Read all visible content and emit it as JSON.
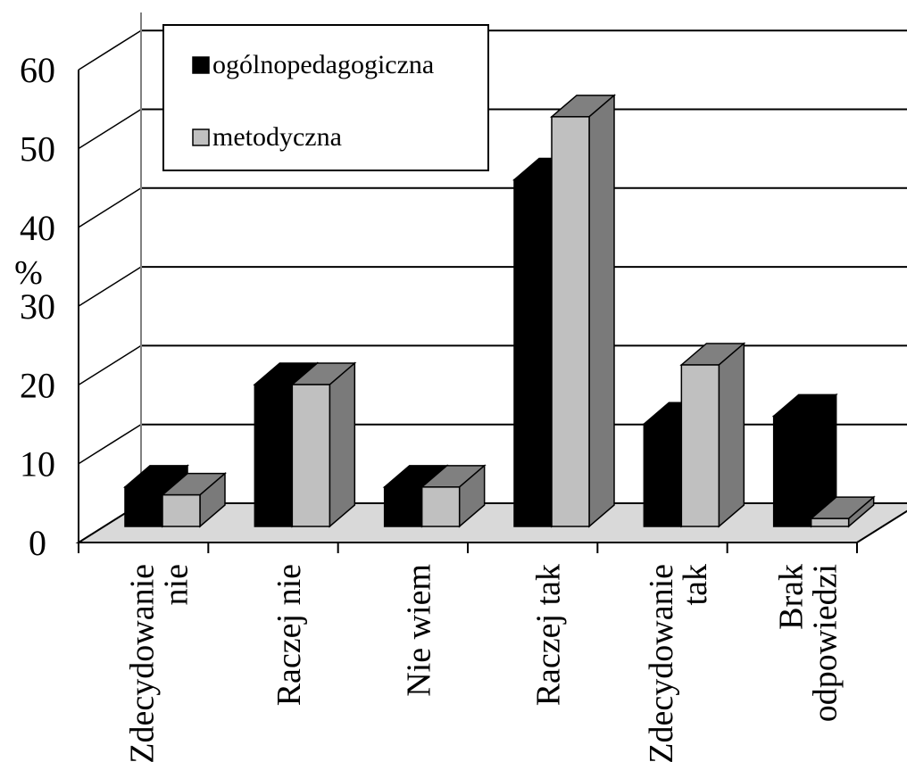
{
  "chart_data": {
    "type": "bar",
    "variant": "3d-clustered-column",
    "ylabel": "%",
    "ylim": [
      0,
      60
    ],
    "yticks": [
      "0",
      "10",
      "20",
      "30",
      "40",
      "50",
      "60"
    ],
    "grid": true,
    "legend_position": "top-left",
    "categories": [
      [
        "Zdecydowanie",
        "nie"
      ],
      [
        "Raczej nie"
      ],
      [
        "Nie wiem"
      ],
      [
        "Raczej tak"
      ],
      [
        "Zdecydowanie",
        "tak"
      ],
      [
        "Brak",
        "odpowiedzi"
      ]
    ],
    "series": [
      {
        "name": "ogólnopedagogiczna",
        "values": [
          5,
          18,
          5,
          44,
          13,
          14
        ],
        "colors": {
          "front": "#000000",
          "top": "#000000",
          "side": "#000000"
        }
      },
      {
        "name": "metodyczna",
        "values": [
          4,
          18,
          5,
          52,
          20.5,
          1
        ],
        "colors": {
          "front": "#c0c0c0",
          "top": "#808080",
          "side": "#7a7a7a"
        }
      }
    ],
    "floor_color": "#d9d9d9"
  }
}
